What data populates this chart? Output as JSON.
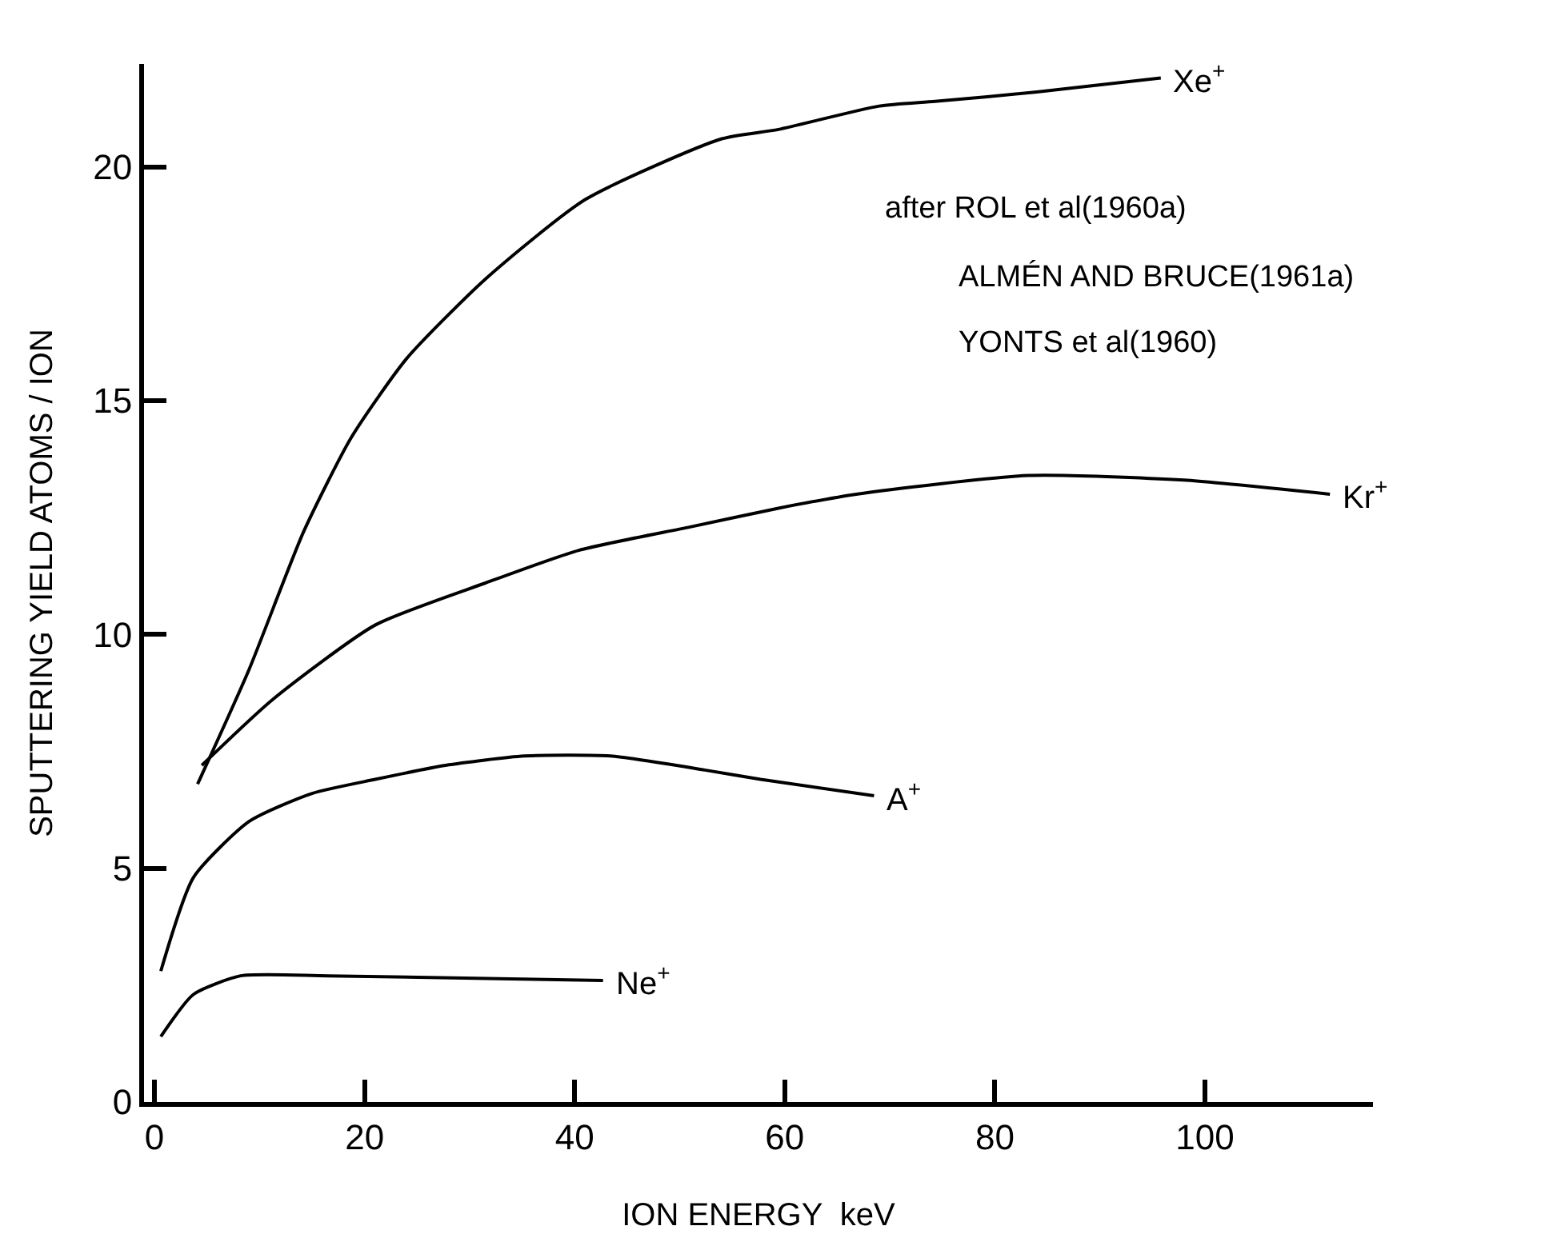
{
  "chart_data": {
    "type": "line",
    "xlabel": "ION ENERGY  keV",
    "ylabel": "SPUTTERING YIELD ATOMS / ION",
    "xlim": [
      -1,
      116
    ],
    "ylim": [
      0,
      22.2
    ],
    "xticks": [
      0,
      20,
      40,
      60,
      80,
      100
    ],
    "yticks": [
      0,
      5,
      10,
      15,
      20
    ],
    "legend": false,
    "marker": "none",
    "line_style": "solid",
    "series": [
      {
        "name": "Xe$^{+}$",
        "color": "#000000",
        "x": [
          4.1,
          9,
          14.2,
          18.7,
          24,
          31.5,
          41,
          54,
          59.4,
          69,
          74.3,
          84,
          95.8
        ],
        "values": [
          6.8,
          9.25,
          12.2,
          14.2,
          15.9,
          17.6,
          19.3,
          20.6,
          20.8,
          21.3,
          21.4,
          21.6,
          21.9
        ]
      },
      {
        "name": "Kr$^{+}$",
        "color": "#000000",
        "x": [
          4.5,
          11.2,
          21,
          31.5,
          40.4,
          51,
          59.4,
          66.8,
          83.2,
          98,
          111.9
        ],
        "values": [
          7.2,
          8.6,
          10.2,
          11.1,
          11.8,
          12.3,
          12.7,
          13.0,
          13.4,
          13.3,
          13.0
        ]
      },
      {
        "name": "A$^{+}$",
        "color": "#000000",
        "x": [
          0.6,
          3.7,
          9,
          15,
          21,
          27.7,
          35.2,
          43.4,
          52.4,
          57.7,
          68.5
        ],
        "values": [
          2.8,
          4.8,
          6.0,
          6.6,
          6.9,
          7.2,
          7.4,
          7.4,
          7.1,
          6.9,
          6.55
        ]
      },
      {
        "name": "Ne$^{+}$",
        "color": "#000000",
        "x": [
          0.6,
          3.7,
          8.2,
          16.5,
          42.7
        ],
        "values": [
          1.4,
          2.3,
          2.7,
          2.7,
          2.6
        ]
      }
    ],
    "annotations": [
      "after ROL et al(1960a)",
      "ALMÉN AND BRUCE(1961a)",
      "YONTS et al(1960)"
    ]
  }
}
